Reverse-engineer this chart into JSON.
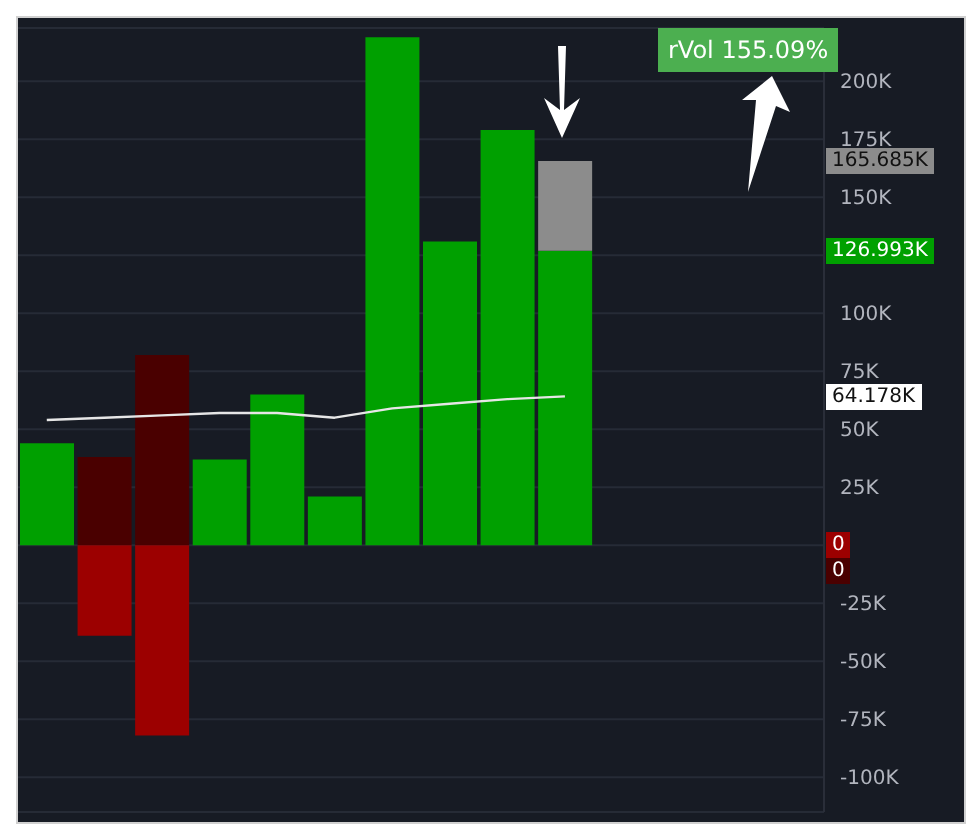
{
  "chart_data": {
    "type": "bar",
    "stacked": true,
    "categories": [
      null,
      null,
      null,
      null,
      null,
      null,
      null,
      null,
      null,
      null,
      null,
      null,
      null,
      null
    ],
    "series": [
      {
        "color": "#00a000",
        "values": [
          44000,
          null,
          null,
          37000,
          65000,
          21000,
          219000,
          131000,
          179000,
          126993,
          null,
          null,
          null,
          null
        ]
      },
      {
        "type": "bar",
        "color": "#8c8c8c",
        "values": [
          null,
          null,
          null,
          null,
          null,
          null,
          null,
          null,
          null,
          38692,
          null,
          null,
          null,
          null
        ]
      },
      {
        "type": "bar",
        "color": "#4a0000",
        "values": [
          null,
          38000,
          82000,
          null,
          null,
          null,
          null,
          null,
          null,
          0,
          null,
          null,
          null,
          null
        ]
      },
      {
        "type": "bar",
        "color": "#9c0000",
        "values": [
          null,
          -39000,
          -82000,
          null,
          null,
          null,
          null,
          null,
          null,
          0,
          null,
          null,
          null,
          null
        ]
      },
      {
        "type": "line",
        "color": "#e6e6e6",
        "marker": "none",
        "values": [
          54000,
          55000,
          56000,
          57000,
          57000,
          55000,
          59000,
          61000,
          63000,
          64178,
          null,
          null,
          null,
          null
        ]
      }
    ],
    "ylim": [
      -115000,
      223000
    ],
    "yticks": [
      {
        "value": -100000,
        "label": "-100K"
      },
      {
        "value": -75000,
        "label": "-75K"
      },
      {
        "value": -50000,
        "label": "-50K"
      },
      {
        "value": -25000,
        "label": "-25K"
      },
      {
        "value": 0,
        "label": null
      },
      {
        "value": 25000,
        "label": "25K"
      },
      {
        "value": 50000,
        "label": "50K"
      },
      {
        "value": 75000,
        "label": "75K"
      },
      {
        "value": 100000,
        "label": "100K"
      },
      {
        "value": 125000,
        "label": null
      },
      {
        "value": 150000,
        "label": "150K"
      },
      {
        "value": 175000,
        "label": "175K"
      },
      {
        "value": 200000,
        "label": "200K"
      }
    ],
    "grid": "y",
    "legend": false,
    "tick_labels": "y",
    "annotations": [
      "rVol 155.09%",
      "165.685K",
      "126.993K",
      "64.178K",
      "0",
      "0"
    ]
  }
}
